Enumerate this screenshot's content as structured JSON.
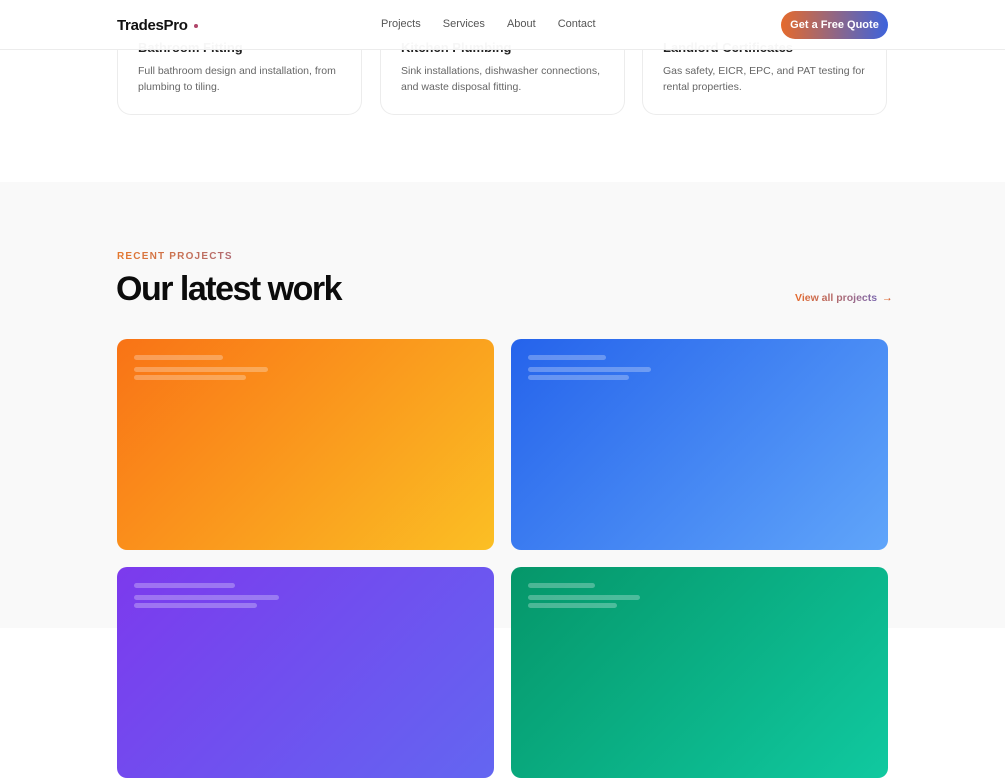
{
  "header": {
    "logo": "TradesPro",
    "nav": [
      "Projects",
      "Services",
      "About",
      "Contact"
    ],
    "cta": "Get a Free Quote"
  },
  "services": [
    {
      "title": "Bathroom Fitting",
      "desc": "Full bathroom design and installation, from plumbing to tiling."
    },
    {
      "title": "Kitchen Plumbing",
      "desc": "Sink installations, dishwasher connections, and waste disposal fitting."
    },
    {
      "title": "Landlord Certificates",
      "desc": "Gas safety, EICR, EPC, and PAT testing for rental properties."
    }
  ],
  "projects_section": {
    "eyebrow": "RECENT PROJECTS",
    "title": "Our latest work",
    "view_all": "View all projects",
    "arrow": "→"
  },
  "project_cards": [
    {
      "gradient": [
        "#f97316",
        "#fbbf24"
      ]
    },
    {
      "gradient": [
        "#2563eb",
        "#60a5fa"
      ]
    },
    {
      "gradient": [
        "#7c3aed",
        "#6366f1"
      ]
    },
    {
      "gradient": [
        "#059669",
        "#10c9a0"
      ]
    }
  ]
}
